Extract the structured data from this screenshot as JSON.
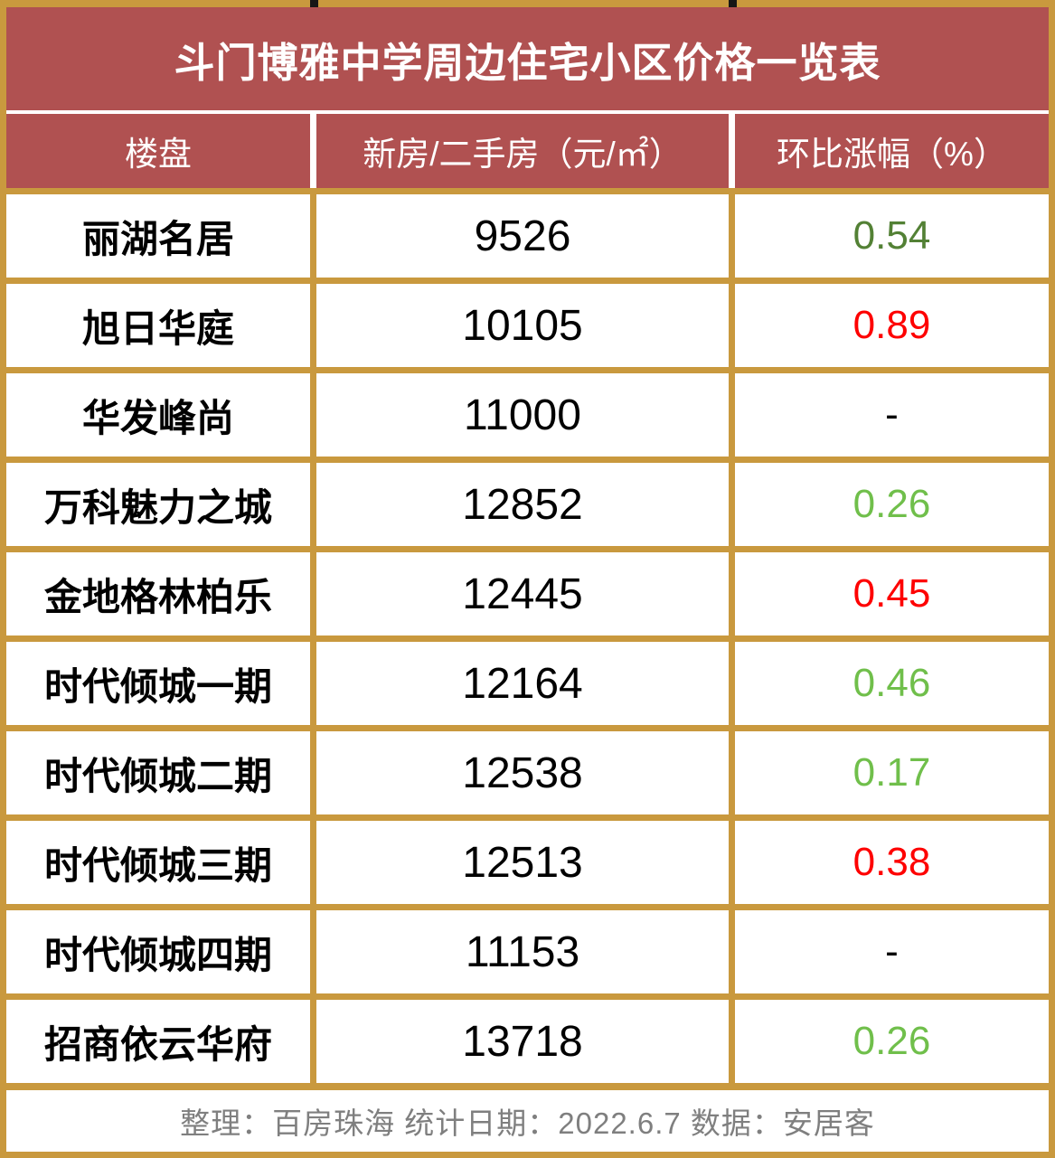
{
  "chart_data": {
    "type": "table",
    "title": "斗门博雅中学周边住宅小区价格一览表",
    "columns": [
      "楼盘",
      "新房/二手房（元/㎡）",
      "环比涨幅（%）"
    ],
    "rows": [
      {
        "name": "丽湖名居",
        "price": "9526",
        "change": "0.54",
        "change_color": "#538135"
      },
      {
        "name": "旭日华庭",
        "price": "10105",
        "change": "0.89",
        "change_color": "#fe0000"
      },
      {
        "name": "华发峰尚",
        "price": "11000",
        "change": "-",
        "change_color": "#000000"
      },
      {
        "name": "万科魅力之城",
        "price": "12852",
        "change": "0.26",
        "change_color": "#70bf4b"
      },
      {
        "name": "金地格林柏乐",
        "price": "12445",
        "change": "0.45",
        "change_color": "#fe0000"
      },
      {
        "name": "时代倾城一期",
        "price": "12164",
        "change": "0.46",
        "change_color": "#70bf4b"
      },
      {
        "name": "时代倾城二期",
        "price": "12538",
        "change": "0.17",
        "change_color": "#70bf4b"
      },
      {
        "name": "时代倾城三期",
        "price": "12513",
        "change": "0.38",
        "change_color": "#fe0000"
      },
      {
        "name": "时代倾城四期",
        "price": "11153",
        "change": "-",
        "change_color": "#000000"
      },
      {
        "name": "招商依云华府",
        "price": "13718",
        "change": "0.26",
        "change_color": "#70bf4b"
      }
    ],
    "footer": "整理：百房珠海 统计日期：2022.6.7 数据：安居客",
    "legend_position": "none",
    "grid": true
  },
  "colors": {
    "header_bg": "#b05151",
    "border_gold": "#c9993e",
    "change_up_red": "#fe0000",
    "change_green_dark": "#538135",
    "change_green_light": "#70bf4b",
    "footer_text": "#7f7f7f"
  }
}
